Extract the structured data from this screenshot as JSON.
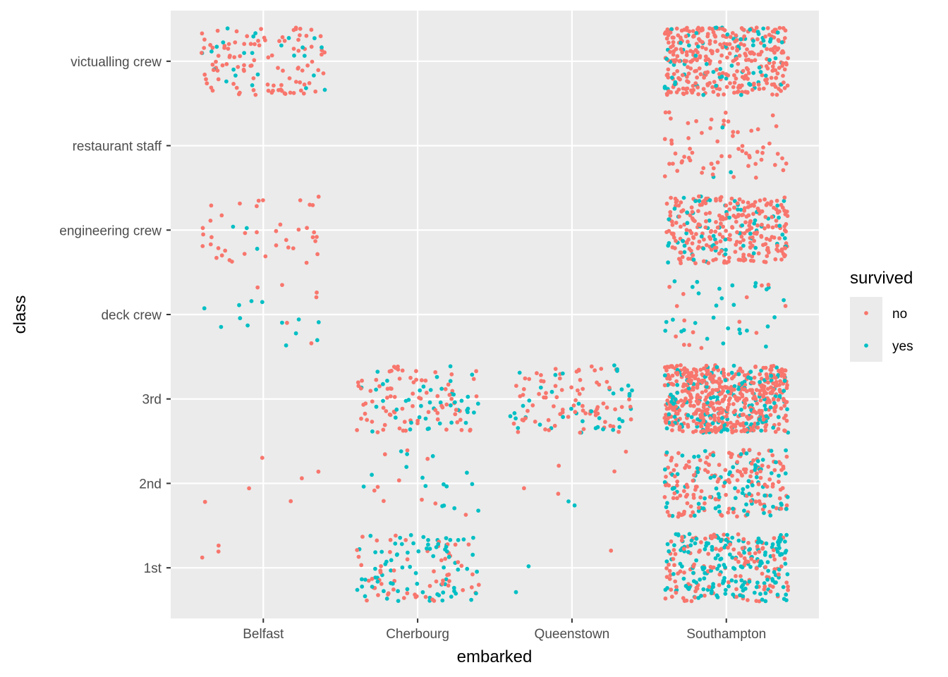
{
  "chart_data": {
    "type": "scatter",
    "subtype": "jitter",
    "xlabel": "embarked",
    "ylabel": "class",
    "x_categories": [
      "Belfast",
      "Cherbourg",
      "Queenstown",
      "Southampton"
    ],
    "y_categories": [
      "1st",
      "2nd",
      "3rd",
      "deck crew",
      "engineering crew",
      "restaurant staff",
      "victualling crew"
    ],
    "jitter": {
      "width": 0.4,
      "height": 0.4
    },
    "grid": true,
    "legend": {
      "title": "survived",
      "position": "right",
      "entries": [
        {
          "label": "no",
          "color": "#F8766D"
        },
        {
          "label": "yes",
          "color": "#00BFC4"
        }
      ]
    },
    "counts": [
      {
        "embarked": "Belfast",
        "class": "1st",
        "no": 3,
        "yes": 0
      },
      {
        "embarked": "Belfast",
        "class": "2nd",
        "no": 6,
        "yes": 0
      },
      {
        "embarked": "Belfast",
        "class": "deck crew",
        "no": 6,
        "yes": 13
      },
      {
        "embarked": "Belfast",
        "class": "engineering crew",
        "no": 40,
        "yes": 3
      },
      {
        "embarked": "Belfast",
        "class": "victualling crew",
        "no": 105,
        "yes": 25
      },
      {
        "embarked": "Cherbourg",
        "class": "1st",
        "no": 60,
        "yes": 80
      },
      {
        "embarked": "Cherbourg",
        "class": "2nd",
        "no": 10,
        "yes": 16
      },
      {
        "embarked": "Cherbourg",
        "class": "3rd",
        "no": 85,
        "yes": 45
      },
      {
        "embarked": "Queenstown",
        "class": "1st",
        "no": 1,
        "yes": 2
      },
      {
        "embarked": "Queenstown",
        "class": "2nd",
        "no": 5,
        "yes": 2
      },
      {
        "embarked": "Queenstown",
        "class": "3rd",
        "no": 80,
        "yes": 40
      },
      {
        "embarked": "Southampton",
        "class": "1st",
        "no": 140,
        "yes": 190
      },
      {
        "embarked": "Southampton",
        "class": "2nd",
        "no": 160,
        "yes": 90
      },
      {
        "embarked": "Southampton",
        "class": "3rd",
        "no": 500,
        "yes": 150
      },
      {
        "embarked": "Southampton",
        "class": "deck crew",
        "no": 15,
        "yes": 30
      },
      {
        "embarked": "Southampton",
        "class": "engineering crew",
        "no": 270,
        "yes": 70
      },
      {
        "embarked": "Southampton",
        "class": "restaurant staff",
        "no": 65,
        "yes": 3
      },
      {
        "embarked": "Southampton",
        "class": "victualling crew",
        "no": 330,
        "yes": 75
      }
    ]
  }
}
